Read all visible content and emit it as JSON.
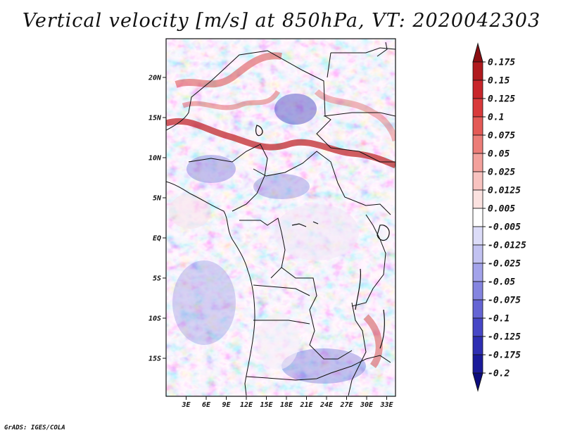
{
  "title": "Vertical velocity [m/s] at 850hPa, VT: 2020042303",
  "credit": "GrADS: IGES/COLA",
  "map": {
    "lat_labels": [
      "20N",
      "15N",
      "10N",
      "5N",
      "EQ",
      "5S",
      "10S",
      "15S"
    ],
    "lon_labels": [
      "3E",
      "6E",
      "9E",
      "12E",
      "15E",
      "18E",
      "21E",
      "24E",
      "27E",
      "30E",
      "33E"
    ],
    "field": "vertical velocity",
    "units": "m/s",
    "level": "850hPa",
    "valid_time": "2020042303"
  },
  "colorbar": {
    "levels": [
      "0.175",
      "0.15",
      "0.125",
      "0.1",
      "0.075",
      "0.05",
      "0.025",
      "0.0125",
      "0.005",
      "-0.005",
      "-0.0125",
      "-0.025",
      "-0.05",
      "-0.075",
      "-0.1",
      "-0.125",
      "-0.175",
      "-0.2"
    ],
    "colors": [
      "#8b0e12",
      "#b01a1e",
      "#c8262b",
      "#d93a3b",
      "#e45a56",
      "#ec7d78",
      "#f3a19c",
      "#f8c3c0",
      "#fbe2e0",
      "#ffffff",
      "#dcdcf8",
      "#c2c2f1",
      "#a3a3ea",
      "#8585e0",
      "#6565d4",
      "#4747c6",
      "#2e2eb2",
      "#1a1a9a",
      "#0c0c7e"
    ]
  }
}
